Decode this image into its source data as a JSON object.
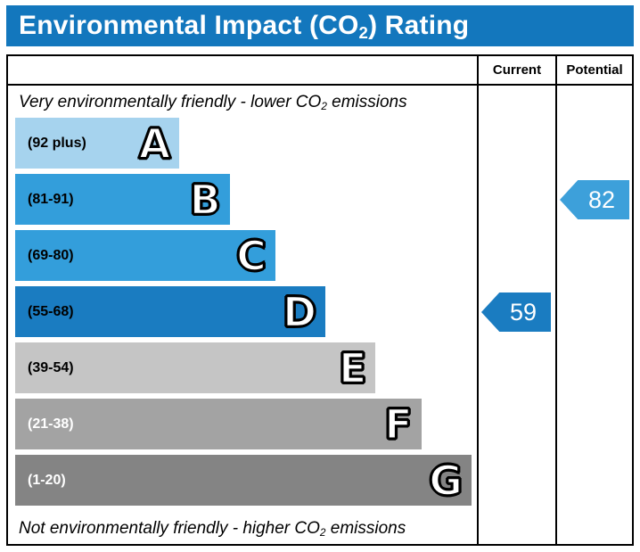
{
  "title": {
    "pre": "Environmental Impact (CO",
    "sub": "2",
    "post": ") Rating"
  },
  "columns": {
    "current": "Current",
    "potential": "Potential"
  },
  "notes": {
    "top": {
      "pre": "Very environmentally friendly - lower CO",
      "sub": "2",
      "post": " emissions"
    },
    "bottom": {
      "pre": "Not environmentally friendly - higher CO",
      "sub": "2",
      "post": " emissions"
    }
  },
  "colors": {
    "title_bar": "#1377bd"
  },
  "chart_data": {
    "type": "bar",
    "title": "Environmental Impact (CO2) Rating",
    "bands": [
      {
        "letter": "A",
        "range": "(92 plus)",
        "color": "#a6d3ee",
        "width_pct": 36,
        "range_text_color": "#000000"
      },
      {
        "letter": "B",
        "range": "(81-91)",
        "color": "#339edb",
        "width_pct": 47,
        "range_text_color": "#000000"
      },
      {
        "letter": "C",
        "range": "(69-80)",
        "color": "#339edb",
        "width_pct": 57,
        "range_text_color": "#000000"
      },
      {
        "letter": "D",
        "range": "(55-68)",
        "color": "#1a7cc1",
        "width_pct": 68,
        "range_text_color": "#000000"
      },
      {
        "letter": "E",
        "range": "(39-54)",
        "color": "#c5c5c5",
        "width_pct": 79,
        "range_text_color": "#000000"
      },
      {
        "letter": "F",
        "range": "(21-38)",
        "color": "#a3a3a3",
        "width_pct": 89,
        "range_text_color": "#ffffff"
      },
      {
        "letter": "G",
        "range": "(1-20)",
        "color": "#848484",
        "width_pct": 100,
        "range_text_color": "#ffffff"
      }
    ],
    "current": {
      "value": 59,
      "band": "D",
      "color": "#1a7cc1"
    },
    "potential": {
      "value": 82,
      "band": "B",
      "color": "#3da0da"
    }
  }
}
